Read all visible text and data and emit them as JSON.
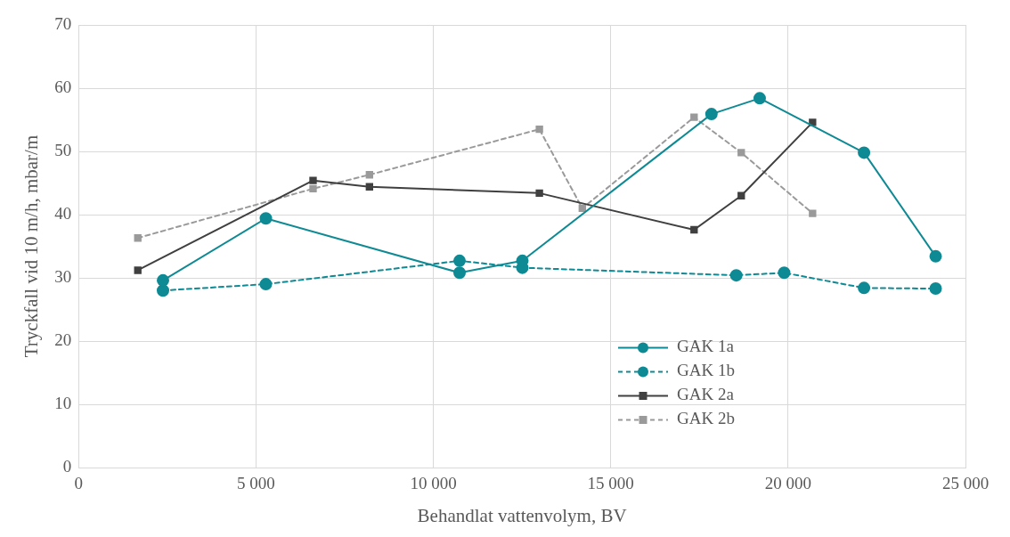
{
  "chart_data": {
    "type": "line",
    "xlabel": "Behandlat vattenvolym, BV",
    "ylabel": "Tryckfall vid 10 m/h, mbar/m",
    "xlim": [
      0,
      25000
    ],
    "xticks": [
      0,
      {
        "value": 5000,
        "label": "5 000"
      },
      {
        "value": 10000,
        "label": "10 000"
      },
      {
        "value": 15000,
        "label": "15 000"
      },
      {
        "value": 20000,
        "label": "20 000"
      },
      {
        "value": 25000,
        "label": "25 000"
      }
    ],
    "ylim": [
      0,
      70
    ],
    "yticks": [
      0,
      10,
      20,
      30,
      40,
      50,
      60,
      70
    ],
    "grid": true,
    "legend": "bottom right",
    "series": [
      {
        "name": "GAK 1a",
        "color": "#0e8a94",
        "marker": "circle",
        "line_style": "solid",
        "x": [
          2380,
          5280,
          10740,
          12510,
          17840,
          19200,
          22140,
          24160
        ],
        "values": [
          29.6,
          39.4,
          30.8,
          32.7,
          55.9,
          58.4,
          49.8,
          33.4
        ]
      },
      {
        "name": "GAK 1b",
        "color": "#0e8a94",
        "marker": "circle",
        "line_style": "dashed",
        "x": [
          2380,
          5280,
          10740,
          12510,
          18540,
          19890,
          22140,
          24160
        ],
        "values": [
          28.0,
          29.0,
          32.7,
          31.6,
          30.4,
          30.8,
          28.4,
          28.3
        ]
      },
      {
        "name": "GAK 2a",
        "color": "#404040",
        "marker": "square",
        "line_style": "solid",
        "x": [
          1670,
          6610,
          8200,
          12990,
          17350,
          18680,
          20690
        ],
        "values": [
          31.2,
          45.4,
          44.4,
          43.4,
          37.6,
          43.0,
          54.6
        ]
      },
      {
        "name": "GAK 2b",
        "color": "#9a9a9a",
        "marker": "square",
        "line_style": "dashed",
        "x": [
          1670,
          6610,
          8200,
          12990,
          14200,
          17350,
          18680,
          20690
        ],
        "values": [
          36.3,
          44.1,
          46.3,
          53.5,
          41.0,
          55.4,
          49.8,
          40.2
        ]
      }
    ]
  }
}
